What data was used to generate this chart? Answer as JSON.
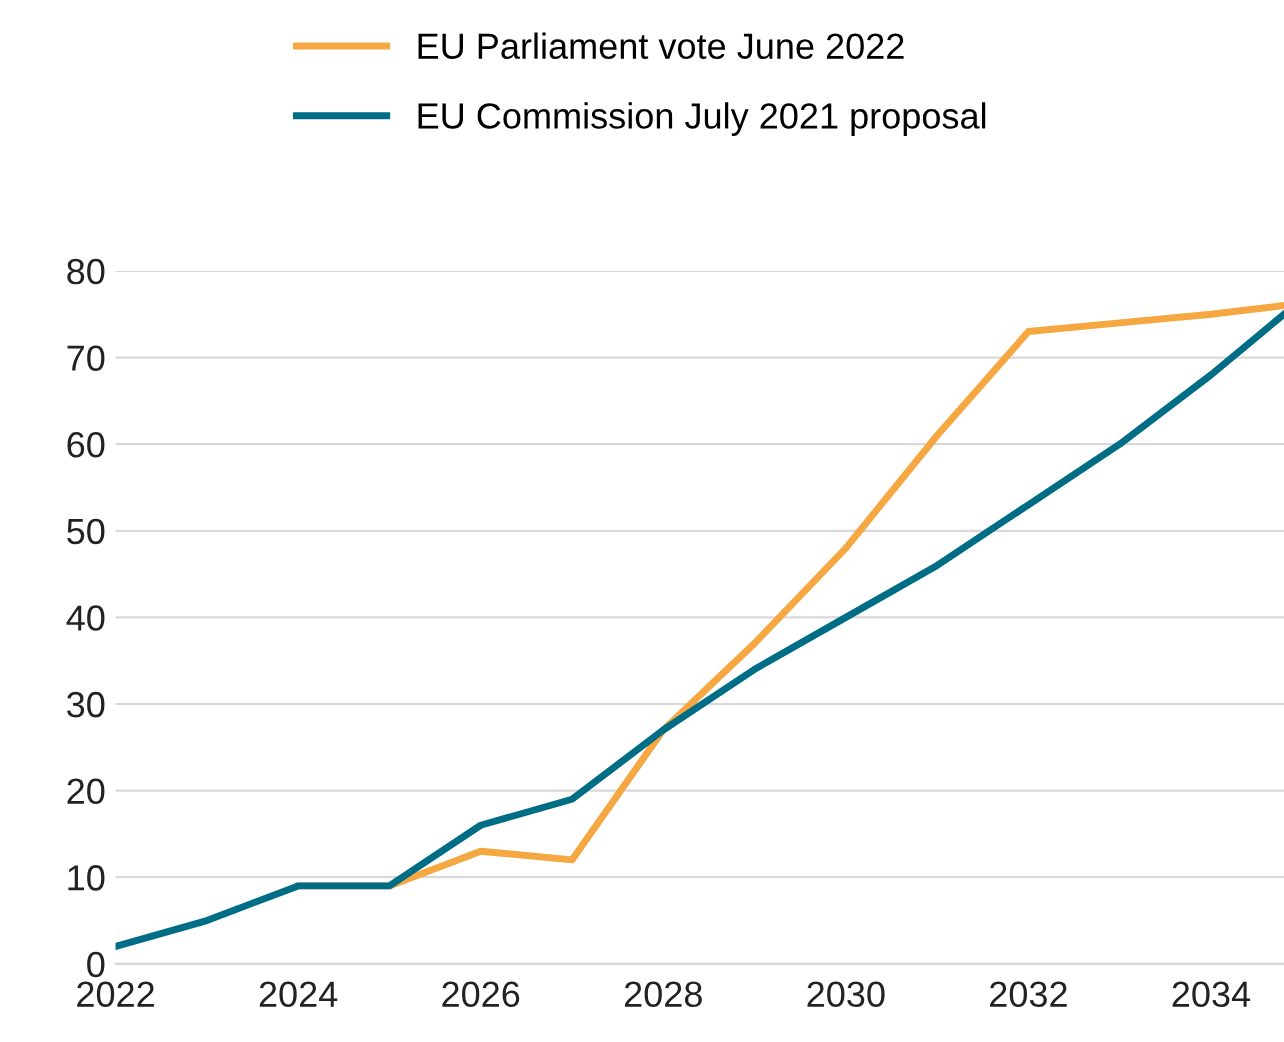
{
  "chart_data": {
    "type": "line",
    "series": [
      {
        "name": "EU Parliament vote June 2022",
        "color": "#f5a742",
        "x": [
          2024,
          2025,
          2026,
          2027,
          2028,
          2029,
          2030,
          2031,
          2032,
          2033,
          2034,
          2034.8
        ],
        "values": [
          9,
          9,
          13,
          12,
          27,
          37,
          48,
          61,
          73,
          74,
          75,
          76
        ]
      },
      {
        "name": "EU Commission July 2021 proposal",
        "color": "#006d86",
        "x": [
          2022,
          2023,
          2024,
          2025,
          2026,
          2027,
          2028,
          2029,
          2030,
          2031,
          2032,
          2033,
          2034,
          2034.8
        ],
        "values": [
          2,
          5,
          9,
          9,
          16,
          19,
          27,
          34,
          40,
          46,
          53,
          60,
          68,
          75
        ]
      }
    ],
    "xlim": [
      2022,
      2034.8
    ],
    "xticks": [
      2022,
      2024,
      2026,
      2028,
      2030,
      2032,
      2034
    ],
    "ylim": [
      0,
      80
    ],
    "yticks": [
      0,
      10,
      20,
      30,
      40,
      50,
      60,
      70,
      80
    ],
    "grid": "y",
    "legend": "top",
    "marker": "none",
    "line_style": "solid"
  }
}
